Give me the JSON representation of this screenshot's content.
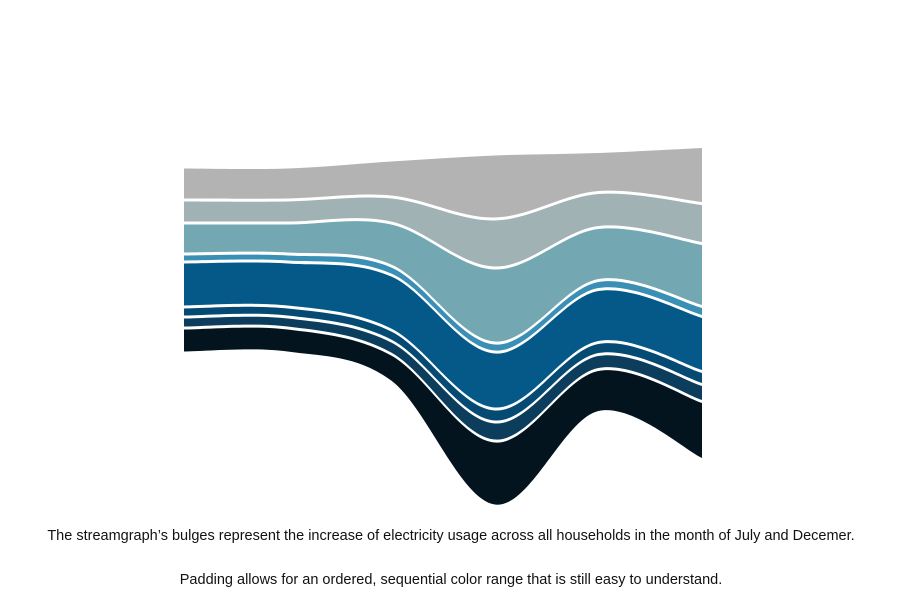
{
  "captions": {
    "line1": "The streamgraph’s bulges represent the increase of electricity usage across all households in the month of July and Decemer.",
    "line2": "Padding allows for an ordered, sequential color range that is still easy to understand."
  },
  "chart_data": {
    "type": "area",
    "subtype": "streamgraph",
    "title": "",
    "xlabel": "",
    "ylabel": "",
    "x": [
      0,
      1,
      2,
      3,
      4,
      5
    ],
    "grid": false,
    "legend": "none",
    "series": [
      {
        "color": "#03141f",
        "values": [
          22,
          22,
          25,
          62,
          40,
          55
        ]
      },
      {
        "color": "#0d3d5c",
        "values": [
          8,
          8,
          10,
          16,
          12,
          14
        ]
      },
      {
        "color": "#054a72",
        "values": [
          7,
          7,
          8,
          10,
          9,
          10
        ]
      },
      {
        "color": "#055989",
        "values": [
          42,
          42,
          52,
          54,
          50,
          52
        ]
      },
      {
        "color": "#3a8fb5",
        "values": [
          5,
          5,
          6,
          6,
          6,
          7
        ]
      },
      {
        "color": "#73a8b3",
        "values": [
          28,
          28,
          40,
          72,
          50,
          60
        ]
      },
      {
        "color": "#a1b2b4",
        "values": [
          20,
          20,
          23,
          46,
          32,
          37
        ]
      },
      {
        "color": "#b3b3b3",
        "values": [
          30,
          30,
          34,
          62,
          38,
          54
        ]
      }
    ]
  }
}
